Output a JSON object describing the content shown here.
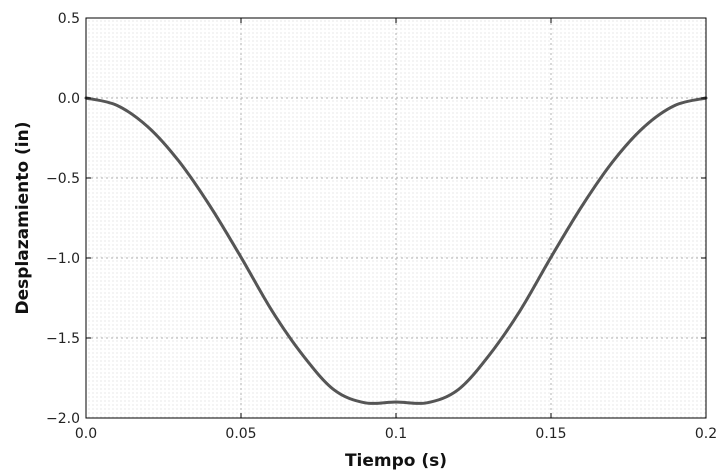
{
  "chart_data": {
    "type": "line",
    "title": "",
    "xlabel": "Tiempo (s)",
    "ylabel": "Desplazamiento (in)",
    "xlim": [
      0,
      0.2
    ],
    "ylim": [
      -2.0,
      0.5
    ],
    "xticks": [
      0.0,
      0.05,
      0.1,
      0.15,
      0.2
    ],
    "xtick_labels": [
      "0.0",
      "0.05",
      "0.1",
      "0.15",
      "0.2"
    ],
    "yticks": [
      0.5,
      0.0,
      -0.5,
      -1.0,
      -1.5,
      -2.0
    ],
    "ytick_labels": [
      "0.5",
      "0.0",
      "−0.5",
      "−1.0",
      "−1.5",
      "−2.0"
    ],
    "grid": true,
    "line_color": "#555555",
    "series": [
      {
        "x": [
          0,
          0.01,
          0.02,
          0.03,
          0.04,
          0.05,
          0.06,
          0.07,
          0.08,
          0.09,
          0.1,
          0.11,
          0.12,
          0.13,
          0.14,
          0.15,
          0.16,
          0.17,
          0.18,
          0.19,
          0.2
        ],
        "y": [
          0,
          -0.046,
          -0.181,
          -0.396,
          -0.675,
          -0.995,
          -1.33,
          -1.609,
          -1.824,
          -1.905,
          -1.9,
          -1.905,
          -1.824,
          -1.609,
          -1.33,
          -0.995,
          -0.675,
          -0.396,
          -0.181,
          -0.046,
          0
        ]
      }
    ]
  }
}
